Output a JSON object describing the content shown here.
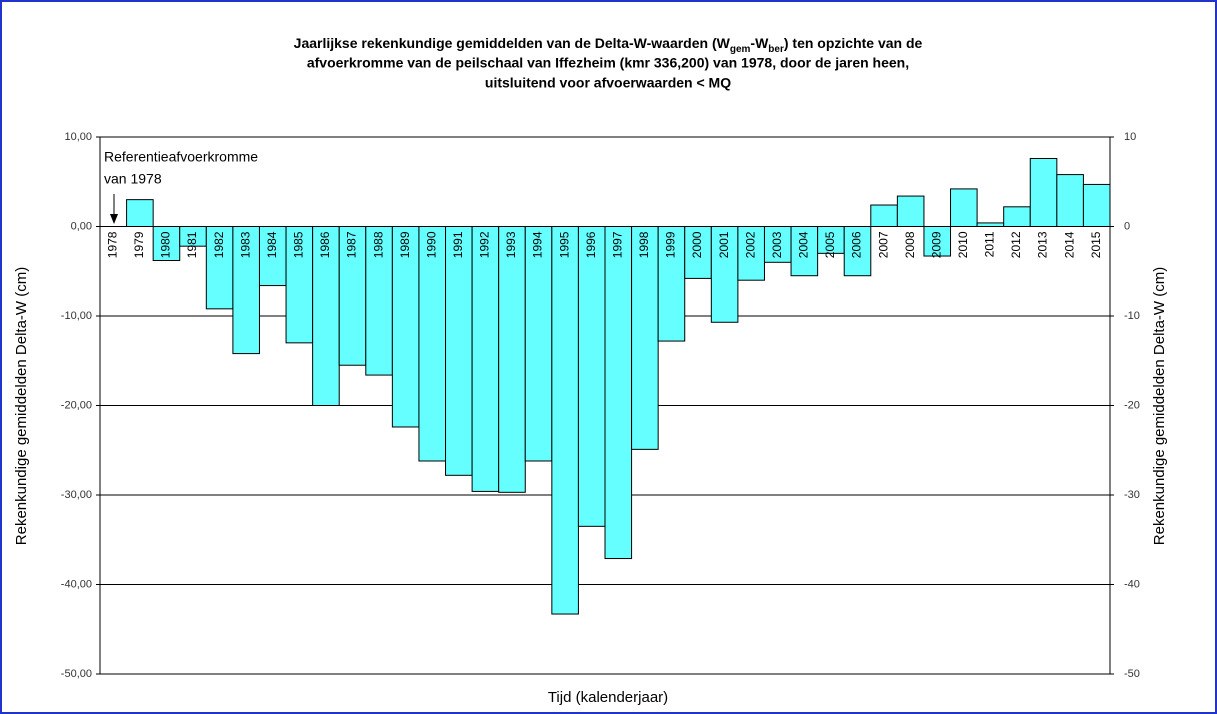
{
  "chart_data": {
    "type": "bar",
    "title": {
      "line1": [
        "Jaarlijkse rekenkundige gemiddelden van de Delta-W-waarden (W",
        "gem",
        "-W",
        "ber",
        ") ten opzichte van de"
      ],
      "line2": "afvoerkromme van de peilschaal van Iffezheim (kmr 336,200) van 1978, door de jaren heen,",
      "line3": "uitsluitend voor afvoerwaarden < MQ"
    },
    "annotation": [
      "Referentieafvoerkromme",
      "van 1978"
    ],
    "x_label": "Tijd (kalenderjaar)",
    "y_label": "Rekenkundige gemiddelden Delta-W (cm)",
    "y2_label": "Rekenkundige gemiddelden Delta-W (cm)",
    "categories": [
      "1978",
      "1979",
      "1980",
      "1981",
      "1982",
      "1983",
      "1984",
      "1985",
      "1986",
      "1987",
      "1988",
      "1989",
      "1990",
      "1991",
      "1992",
      "1993",
      "1994",
      "1995",
      "1996",
      "1997",
      "1998",
      "1999",
      "2000",
      "2001",
      "2002",
      "2003",
      "2004",
      "2005",
      "2006",
      "2007",
      "2008",
      "2009",
      "2010",
      "2011",
      "2012",
      "2013",
      "2014",
      "2015"
    ],
    "values": [
      0,
      3.0,
      -3.8,
      -2.2,
      -9.2,
      -14.2,
      -6.6,
      -13.0,
      -20.0,
      -15.5,
      -16.6,
      -22.4,
      -26.2,
      -27.8,
      -29.6,
      -29.7,
      -26.2,
      -43.3,
      -33.5,
      -37.1,
      -24.9,
      -12.8,
      -5.8,
      -10.7,
      -6.0,
      -4.0,
      -5.5,
      -3.0,
      -5.5,
      2.4,
      3.4,
      -3.3,
      4.2,
      0.4,
      2.2,
      7.6,
      5.8,
      4.7
    ],
    "color": "#66ffff",
    "ylim": [
      -50,
      10
    ],
    "yticks": [
      {
        "value": 10,
        "label": "10,00"
      },
      {
        "value": 0,
        "label": "0,00"
      },
      {
        "value": -10,
        "label": "-10,00"
      },
      {
        "value": -20,
        "label": "-20,00"
      },
      {
        "value": -30,
        "label": "-30,00"
      },
      {
        "value": -40,
        "label": "-40,00"
      },
      {
        "value": -50,
        "label": "-50,00"
      }
    ],
    "y2lim": [
      -50,
      10
    ],
    "y2ticks": [
      10,
      0,
      -10,
      -20,
      -30,
      -40,
      -50
    ],
    "grid": true
  }
}
